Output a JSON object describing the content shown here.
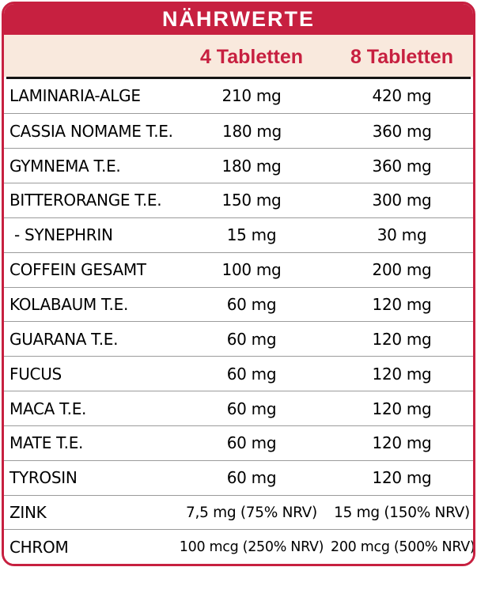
{
  "table": {
    "title": "NÄHRWERTE",
    "columns": [
      "4 Tabletten",
      "8 Tabletten"
    ],
    "rows": [
      {
        "name": "LAMINARIA-ALGE",
        "col4": "210 mg",
        "col8": "420 mg",
        "sub": false
      },
      {
        "name": "CASSIA NOMAME T.E.",
        "col4": "180 mg",
        "col8": "360 mg",
        "sub": false
      },
      {
        "name": "GYMNEMA T.E.",
        "col4": "180 mg",
        "col8": "360 mg",
        "sub": false
      },
      {
        "name": "BITTERORANGE T.E.",
        "col4": "150 mg",
        "col8": "300 mg",
        "sub": false
      },
      {
        "name": "- SYNEPHRIN",
        "col4": "15 mg",
        "col8": "30 mg",
        "sub": true
      },
      {
        "name": "COFFEIN GESAMT",
        "col4": "100 mg",
        "col8": "200 mg",
        "sub": false
      },
      {
        "name": "KOLABAUM T.E.",
        "col4": "60 mg",
        "col8": "120 mg",
        "sub": false
      },
      {
        "name": "GUARANA T.E.",
        "col4": "60 mg",
        "col8": "120 mg",
        "sub": false
      },
      {
        "name": "FUCUS",
        "col4": "60 mg",
        "col8": "120 mg",
        "sub": false
      },
      {
        "name": "MACA T.E.",
        "col4": "60 mg",
        "col8": "120 mg",
        "sub": false
      },
      {
        "name": "MATE T.E.",
        "col4": "60 mg",
        "col8": "120 mg",
        "sub": false
      },
      {
        "name": "TYROSIN",
        "col4": "60 mg",
        "col8": "120 mg",
        "sub": false
      },
      {
        "name": "ZINK",
        "col4": "7,5 mg (75% NRV)",
        "col8": "15 mg (150% NRV)",
        "sub": false
      },
      {
        "name": "CHROM",
        "col4": "100 mcg (250% NRV)",
        "col8": "200 mcg (500% NRV)",
        "sub": false
      }
    ],
    "colors": {
      "accent_red": "#C72040",
      "title_text": "#FFFFFF",
      "subheader_bg": "#F9E9DD",
      "row_text": "#000000",
      "separator_gray": "#9B9B9B",
      "header_divider_black": "#141414"
    }
  }
}
